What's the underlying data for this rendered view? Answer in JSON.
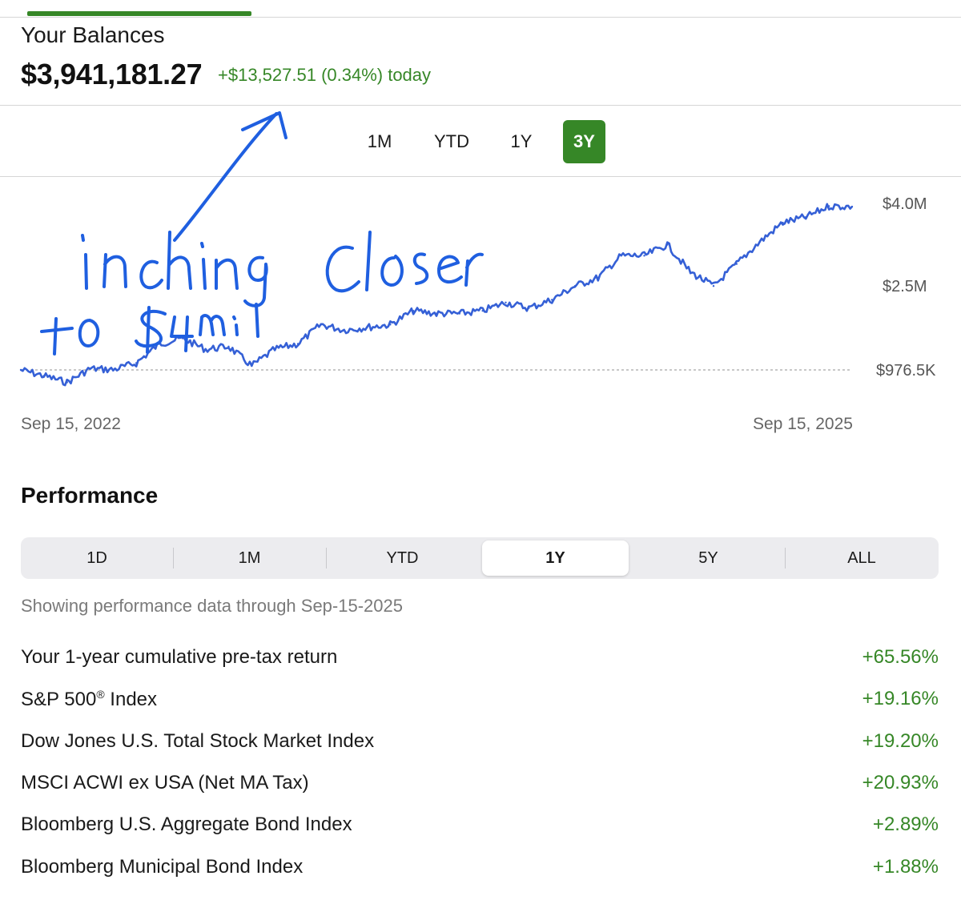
{
  "balances": {
    "title": "Your Balances",
    "amount": "$3,941,181.27",
    "change": "+$13,527.51 (0.34%) today"
  },
  "range_tabs": [
    {
      "label": "1M",
      "active": false
    },
    {
      "label": "YTD",
      "active": false
    },
    {
      "label": "1Y",
      "active": false
    },
    {
      "label": "3Y",
      "active": true
    }
  ],
  "chart_data": {
    "type": "line",
    "x_start_label": "Sep 15, 2022",
    "x_end_label": "Sep 15, 2025",
    "y_tick_labels": [
      "$4.0M",
      "$2.5M",
      "$976.5K"
    ],
    "y_ticks": [
      4000000,
      2500000,
      976500
    ],
    "baseline": 976500,
    "line_color": "#3560d6",
    "x": [
      "2022-09",
      "2022-10",
      "2022-11",
      "2022-12",
      "2023-01",
      "2023-02",
      "2023-03",
      "2023-04",
      "2023-05",
      "2023-06",
      "2023-07",
      "2023-08",
      "2023-09",
      "2023-10",
      "2023-11",
      "2023-12",
      "2024-01",
      "2024-02",
      "2024-03",
      "2024-04",
      "2024-05",
      "2024-06",
      "2024-07",
      "2024-08",
      "2024-09",
      "2024-10",
      "2024-11",
      "2024-12",
      "2025-01",
      "2025-02",
      "2025-03",
      "2025-04",
      "2025-05",
      "2025-06",
      "2025-07",
      "2025-08",
      "2025-09"
    ],
    "values": [
      976500,
      870000,
      750000,
      1000000,
      980000,
      1100000,
      1450000,
      1550000,
      1350000,
      1400000,
      1050000,
      1350000,
      1450000,
      1800000,
      1700000,
      1750000,
      1800000,
      2050000,
      2000000,
      2000000,
      2050000,
      2200000,
      2100000,
      2250000,
      2500000,
      2650000,
      3050000,
      3050000,
      3250000,
      2750000,
      2500000,
      2900000,
      3300000,
      3650000,
      3750000,
      3950000,
      3941181
    ]
  },
  "annotation": {
    "text": "inching closer to $4mil",
    "color": "#1f5fe0"
  },
  "performance": {
    "title": "Performance",
    "tabs": [
      {
        "label": "1D",
        "active": false
      },
      {
        "label": "1M",
        "active": false
      },
      {
        "label": "YTD",
        "active": false
      },
      {
        "label": "1Y",
        "active": true
      },
      {
        "label": "5Y",
        "active": false
      },
      {
        "label": "ALL",
        "active": false
      }
    ],
    "note": "Showing performance data through Sep-15-2025",
    "rows": [
      {
        "label": "Your 1-year cumulative pre-tax return",
        "value": "+65.56%"
      },
      {
        "label": "S&P 500",
        "sup": "®",
        "label_suffix": " Index",
        "value": "+19.16%"
      },
      {
        "label": "Dow Jones U.S. Total Stock Market Index",
        "value": "+19.20%"
      },
      {
        "label": "MSCI ACWI ex USA (Net MA Tax)",
        "value": "+20.93%"
      },
      {
        "label": "Bloomberg U.S. Aggregate Bond Index",
        "value": "+2.89%"
      },
      {
        "label": "Bloomberg Municipal Bond Index",
        "value": "+1.88%"
      }
    ]
  },
  "colors": {
    "accent_green": "#368727",
    "line_blue": "#3560d6",
    "ink_blue": "#1f5fe0"
  }
}
